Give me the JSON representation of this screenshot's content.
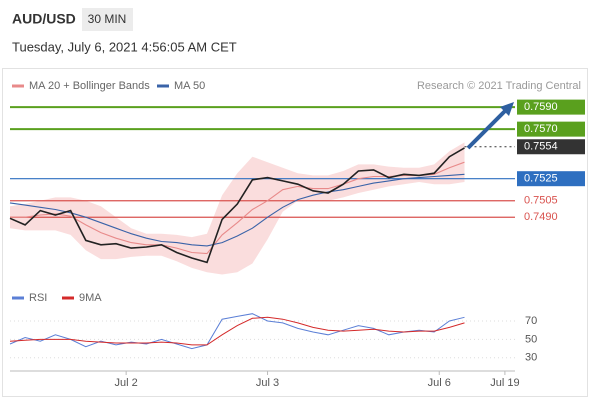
{
  "header": {
    "symbol": "AUD/USD",
    "interval": "30 MIN",
    "timestamp": "Tuesday, July 6, 2021 4:56:05 AM CET",
    "credit": "Research © 2021 Trading Central"
  },
  "chart_data": [
    {
      "type": "line",
      "x": [
        0,
        3,
        6,
        9,
        12,
        15,
        18,
        21,
        24,
        27,
        30,
        33,
        36,
        39,
        42,
        45,
        48,
        51,
        54,
        57,
        60,
        63,
        66,
        69,
        72,
        75,
        78,
        81,
        84,
        87,
        90
      ],
      "xlim": [
        0,
        100
      ],
      "xticks": [
        {
          "value": 23,
          "label": "Jul 2"
        },
        {
          "value": 51,
          "label": "Jul 3"
        },
        {
          "value": 85,
          "label": "Jul 6"
        },
        {
          "value": 98,
          "label": "Jul 19"
        }
      ],
      "ylim": [
        0.7433,
        0.7601
      ],
      "series": [
        {
          "name": "MA 20 + Bollinger Bands",
          "color": "#e88a8a",
          "band_color": "#f9d4d4",
          "values": [
            0.749,
            0.749,
            0.7492,
            0.7493,
            0.7491,
            0.7483,
            0.7476,
            0.7471,
            0.7467,
            0.7465,
            0.7465,
            0.7462,
            0.7458,
            0.7457,
            0.7474,
            0.7485,
            0.7497,
            0.7505,
            0.7515,
            0.7518,
            0.7516,
            0.7516,
            0.752,
            0.7525,
            0.7527,
            0.7527,
            0.7528,
            0.7528,
            0.7529,
            0.7535,
            0.754
          ],
          "upper": [
            0.75,
            0.7502,
            0.7505,
            0.7508,
            0.7508,
            0.7505,
            0.75,
            0.749,
            0.748,
            0.7475,
            0.7475,
            0.7474,
            0.7472,
            0.7475,
            0.751,
            0.753,
            0.7545,
            0.754,
            0.7535,
            0.753,
            0.7528,
            0.7528,
            0.7532,
            0.7538,
            0.7538,
            0.7536,
            0.7535,
            0.7535,
            0.7538,
            0.755,
            0.7558
          ],
          "lower": [
            0.748,
            0.7478,
            0.7478,
            0.7478,
            0.7474,
            0.746,
            0.7452,
            0.7452,
            0.7454,
            0.7455,
            0.7455,
            0.745,
            0.7444,
            0.744,
            0.7438,
            0.744,
            0.7448,
            0.747,
            0.7495,
            0.7505,
            0.7505,
            0.7505,
            0.7508,
            0.7512,
            0.7515,
            0.7518,
            0.752,
            0.7522,
            0.752,
            0.752,
            0.7522
          ]
        },
        {
          "name": "MA 50",
          "color": "#3a63a8",
          "values": [
            0.7503,
            0.7501,
            0.7499,
            0.7497,
            0.7494,
            0.749,
            0.7485,
            0.748,
            0.7475,
            0.7471,
            0.7468,
            0.7467,
            0.7465,
            0.7464,
            0.7467,
            0.7473,
            0.748,
            0.749,
            0.7499,
            0.7506,
            0.751,
            0.7513,
            0.7515,
            0.7518,
            0.7521,
            0.7523,
            0.7525,
            0.7526,
            0.7527,
            0.7528,
            0.7529
          ]
        },
        {
          "color": "#222222",
          "values": [
            0.7489,
            0.7483,
            0.7496,
            0.7492,
            0.7496,
            0.7469,
            0.7465,
            0.7466,
            0.7462,
            0.7463,
            0.7465,
            0.7458,
            0.7453,
            0.7449,
            0.7488,
            0.7502,
            0.7524,
            0.7526,
            0.7523,
            0.752,
            0.7514,
            0.7512,
            0.752,
            0.7532,
            0.7533,
            0.7526,
            0.7529,
            0.7528,
            0.753,
            0.7545,
            0.7553
          ]
        }
      ],
      "levels": [
        {
          "value": 0.759,
          "label": "0.7590",
          "color": "#5aa01e",
          "boxed": true
        },
        {
          "value": 0.757,
          "label": "0.7570",
          "color": "#5aa01e",
          "boxed": true
        },
        {
          "value": 0.7554,
          "label": "0.7554",
          "color": "#333333",
          "boxed": true,
          "current": true
        },
        {
          "value": 0.7525,
          "label": "0.7525",
          "color": "#2e6fc0",
          "boxed": true
        },
        {
          "value": 0.7505,
          "label": "0.7505",
          "color": "#d9534f",
          "boxed": false
        },
        {
          "value": 0.749,
          "label": "0.7490",
          "color": "#d9534f",
          "boxed": false
        }
      ]
    },
    {
      "type": "line",
      "x": [
        0,
        3,
        6,
        9,
        12,
        15,
        18,
        21,
        24,
        27,
        30,
        33,
        36,
        39,
        42,
        45,
        48,
        51,
        54,
        57,
        60,
        63,
        66,
        69,
        72,
        75,
        78,
        81,
        84,
        87,
        90
      ],
      "xlim": [
        0,
        100
      ],
      "ylim": [
        21,
        82
      ],
      "yticks": [
        30,
        50,
        70
      ],
      "series": [
        {
          "name": "RSI",
          "color": "#5b7fd6",
          "values": [
            45,
            52,
            48,
            55,
            50,
            42,
            48,
            44,
            47,
            45,
            50,
            45,
            40,
            44,
            72,
            75,
            78,
            70,
            68,
            62,
            58,
            55,
            60,
            65,
            62,
            55,
            58,
            60,
            58,
            70,
            74
          ]
        },
        {
          "name": "9MA",
          "color": "#d42a2a",
          "values": [
            48,
            49,
            50,
            50,
            50,
            48,
            47,
            46,
            46,
            46,
            47,
            46,
            44,
            44,
            55,
            65,
            73,
            74,
            72,
            68,
            63,
            60,
            59,
            60,
            61,
            59,
            58,
            59,
            59,
            63,
            68
          ]
        }
      ]
    }
  ]
}
